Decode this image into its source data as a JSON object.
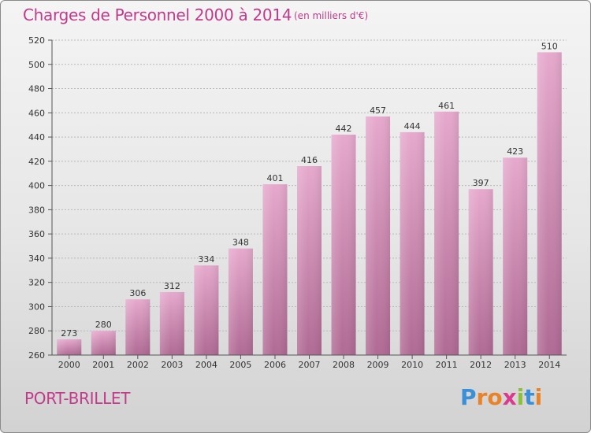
{
  "chart_data": {
    "type": "bar",
    "title": "Charges de Personnel 2000 à 2014",
    "subtitle": "(en milliers d'€)",
    "categories": [
      "2000",
      "2001",
      "2002",
      "2003",
      "2004",
      "2005",
      "2006",
      "2007",
      "2008",
      "2009",
      "2010",
      "2011",
      "2012",
      "2013",
      "2014"
    ],
    "values": [
      273,
      280,
      306,
      312,
      334,
      348,
      401,
      416,
      442,
      457,
      444,
      461,
      397,
      423,
      510
    ],
    "ylim": [
      260,
      520
    ],
    "yticks": [
      260,
      280,
      300,
      320,
      340,
      360,
      380,
      400,
      420,
      440,
      460,
      480,
      500,
      520
    ],
    "xlabel": "",
    "ylabel": "",
    "grid": true
  },
  "footer": {
    "town": "PORT-BRILLET",
    "logo_letters": [
      "P",
      "r",
      "o",
      "x",
      "i",
      "t",
      "i"
    ],
    "logo_colors": [
      "#3b8fd6",
      "#e8832a",
      "#e8832a",
      "#d93a8f",
      "#8cbf3a",
      "#3b8fd6",
      "#e8832a"
    ]
  }
}
